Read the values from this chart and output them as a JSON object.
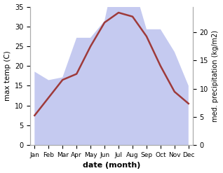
{
  "months": [
    "Jan",
    "Feb",
    "Mar",
    "Apr",
    "May",
    "Jun",
    "Jul",
    "Aug",
    "Sep",
    "Oct",
    "Nov",
    "Dec"
  ],
  "temperature": [
    7.5,
    12.0,
    16.5,
    18.0,
    25.0,
    31.0,
    33.5,
    32.5,
    27.5,
    20.0,
    13.5,
    10.5
  ],
  "precipitation": [
    13.0,
    11.5,
    12.0,
    19.0,
    19.0,
    22.0,
    33.5,
    29.0,
    20.5,
    20.5,
    16.5,
    10.5
  ],
  "temp_color": "#9e3a3a",
  "precip_fill_color": "#c5caf0",
  "temp_ylim": [
    0,
    35
  ],
  "precip_ylim": [
    0,
    24.5
  ],
  "temp_yticks": [
    0,
    5,
    10,
    15,
    20,
    25,
    30,
    35
  ],
  "precip_yticks": [
    0,
    5,
    10,
    15,
    20
  ],
  "precip_ytick_labels": [
    "0",
    "5",
    "10",
    "15",
    "20"
  ],
  "xlabel": "date (month)",
  "ylabel_left": "max temp (C)",
  "ylabel_right": "med. precipitation (kg/m2)",
  "bg_color": "#ffffff"
}
